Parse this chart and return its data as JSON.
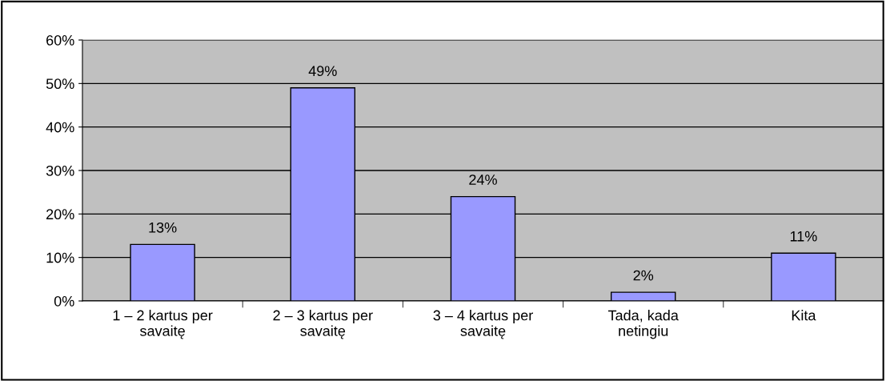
{
  "chart_data": {
    "type": "bar",
    "categories": [
      "1 – 2 kartus per\nsavaitę",
      "2 – 3 kartus per\nsavaitę",
      "3 – 4 kartus per\nsavaitę",
      "Tada, kada\nnetingiu",
      "Kita"
    ],
    "values": [
      13,
      49,
      24,
      2,
      11
    ],
    "value_labels": [
      "13%",
      "49%",
      "24%",
      "2%",
      "11%"
    ],
    "color": "#9999ff",
    "ylim": [
      0,
      60
    ],
    "yticks": [
      {
        "value": 0,
        "label": "0%"
      },
      {
        "value": 10,
        "label": "10%"
      },
      {
        "value": 20,
        "label": "20%"
      },
      {
        "value": 30,
        "label": "30%"
      },
      {
        "value": 40,
        "label": "40%"
      },
      {
        "value": 50,
        "label": "50%"
      },
      {
        "value": 60,
        "label": "60%"
      }
    ],
    "grid": "y",
    "legend": false
  }
}
